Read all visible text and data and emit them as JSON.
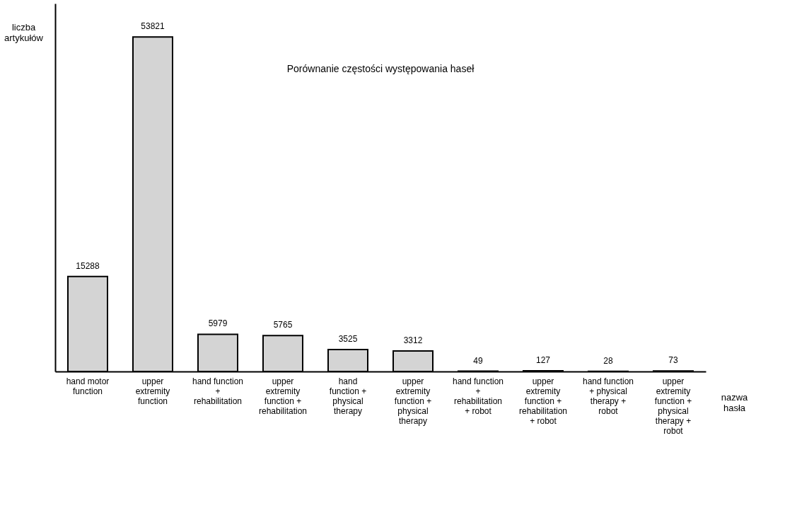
{
  "chart_data": {
    "type": "bar",
    "title": "Porównanie częstości występowania haseł",
    "xlabel": "nazwa\nhasła",
    "ylabel": "liczba\nartykułów",
    "color": "#d4d4d4",
    "grid": false,
    "data_labels": true,
    "tick_labels": "x",
    "categories": [
      "hand motor\nfunction",
      "upper\nextremity\nfunction",
      "hand function\n+\nrehabilitation",
      "upper\nextremity\nfunction +\nrehabilitation",
      "hand\nfunction +\nphysical\ntherapy",
      "upper\nextremity\nfunction +\nphysical\ntherapy",
      "hand function\n+\nrehabilitation\n+ robot",
      "upper\nextremity\nfunction +\nrehabilitation\n+ robot",
      "hand function\n+ physical\ntherapy +\nrobot",
      "upper\nextremity\nfunction +\nphysical\ntherapy +\nrobot"
    ],
    "values": [
      15288,
      53821,
      5979,
      5765,
      3525,
      3312,
      49,
      127,
      28,
      73
    ]
  }
}
